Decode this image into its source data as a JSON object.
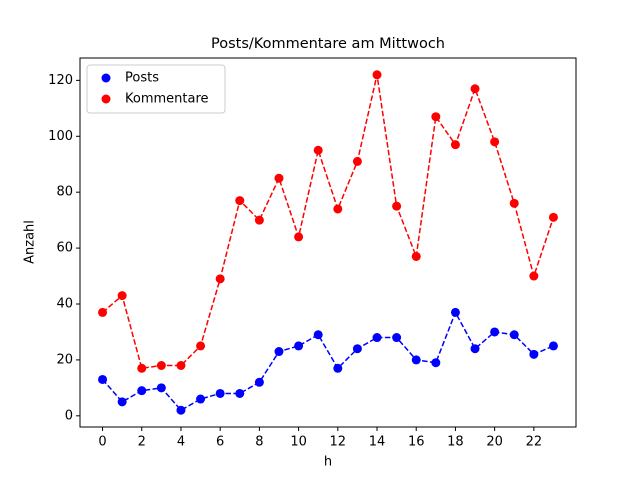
{
  "chart_data": {
    "type": "line",
    "title": "Posts/Kommentare am Mittwoch",
    "xlabel": "h",
    "ylabel": "Anzahl",
    "x": [
      0,
      1,
      2,
      3,
      4,
      5,
      6,
      7,
      8,
      9,
      10,
      11,
      12,
      13,
      14,
      15,
      16,
      17,
      18,
      19,
      20,
      21,
      22,
      23
    ],
    "series": [
      {
        "name": "Posts",
        "color": "#0000ff",
        "values": [
          13,
          5,
          9,
          10,
          2,
          6,
          8,
          8,
          12,
          23,
          25,
          29,
          17,
          24,
          28,
          28,
          20,
          19,
          37,
          24,
          30,
          29,
          22,
          25
        ]
      },
      {
        "name": "Kommentare",
        "color": "#ff0000",
        "values": [
          37,
          43,
          17,
          18,
          18,
          25,
          49,
          77,
          70,
          85,
          64,
          95,
          74,
          91,
          122,
          75,
          57,
          107,
          97,
          117,
          98,
          76,
          50,
          71
        ]
      }
    ],
    "xlim": [
      -1.15,
      24.15
    ],
    "ylim": [
      -4,
      128
    ],
    "xticks": [
      0,
      2,
      4,
      6,
      8,
      10,
      12,
      14,
      16,
      18,
      20,
      22
    ],
    "yticks": [
      0,
      20,
      40,
      60,
      80,
      100,
      120
    ],
    "legend": "upper left"
  }
}
